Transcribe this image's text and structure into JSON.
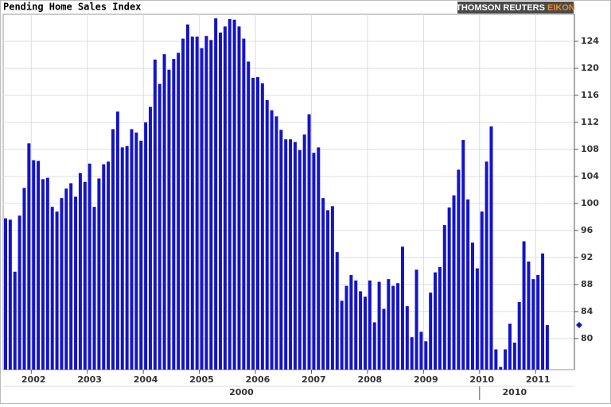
{
  "chart_data": {
    "type": "bar",
    "title": "Pending Home Sales Index",
    "brand": [
      "THOMSON REUTERS ",
      "EIKON"
    ],
    "brand_colors": [
      "#ffffff",
      "#f08a1c"
    ],
    "color": "#1414c8",
    "grid": true,
    "y_axis_side": "right",
    "ylim": [
      75.4,
      128
    ],
    "yticks": [
      80,
      84,
      88,
      92,
      96,
      100,
      104,
      108,
      112,
      116,
      120,
      124
    ],
    "categories": [
      null,
      null,
      null,
      null,
      null,
      null,
      "2002",
      null,
      null,
      null,
      null,
      null,
      null,
      null,
      null,
      null,
      null,
      null,
      "2003",
      null,
      null,
      null,
      null,
      null,
      null,
      null,
      null,
      null,
      null,
      null,
      "2004",
      null,
      null,
      null,
      null,
      null,
      null,
      null,
      null,
      null,
      null,
      null,
      "2005",
      null,
      null,
      null,
      null,
      null,
      null,
      null,
      null,
      null,
      null,
      null,
      "2006",
      null,
      null,
      null,
      null,
      null,
      null,
      null,
      null,
      null,
      null,
      null,
      "2007",
      null,
      null,
      null,
      null,
      null,
      null,
      null,
      null,
      null,
      null,
      null,
      "2008",
      null,
      null,
      null,
      null,
      null,
      null,
      null,
      null,
      null,
      null,
      null,
      "2009",
      null,
      null,
      null,
      null,
      null,
      null,
      null,
      null,
      null,
      null,
      null,
      "2010",
      null,
      null,
      null,
      null,
      null,
      null,
      null,
      null,
      null,
      null,
      null,
      "2011",
      null,
      null
    ],
    "values": [
      97.8,
      97.6,
      89.9,
      98.2,
      102.3,
      108.9,
      106.4,
      106.3,
      103.6,
      103.8,
      99.5,
      98.8,
      100.8,
      102.2,
      103.0,
      101.0,
      104.5,
      103.2,
      105.9,
      99.5,
      103.7,
      105.8,
      106.2,
      111.0,
      113.6,
      108.3,
      108.5,
      111.0,
      110.5,
      109.3,
      112.0,
      114.3,
      121.3,
      117.7,
      122.1,
      119.8,
      121.4,
      122.3,
      124.4,
      126.5,
      124.7,
      124.7,
      123.0,
      124.8,
      124.2,
      127.4,
      125.3,
      126.2,
      127.3,
      127.2,
      126.2,
      124.4,
      121.0,
      118.6,
      118.7,
      117.8,
      115.3,
      113.8,
      112.9,
      110.9,
      109.5,
      109.5,
      109.1,
      107.9,
      110.2,
      113.2,
      107.5,
      108.3,
      100.8,
      99.0,
      99.6,
      92.8,
      85.6,
      87.8,
      89.4,
      88.6,
      87.0,
      86.2,
      88.6,
      82.4,
      88.4,
      84.4,
      88.8,
      87.8,
      88.2,
      93.6,
      84.8,
      80.2,
      90.2,
      81.0,
      79.6,
      86.8,
      89.8,
      90.6,
      96.8,
      99.4,
      101.2,
      105.0,
      109.4,
      100.6,
      94.2,
      90.4,
      98.8,
      106.2,
      111.4,
      78.4,
      75.8,
      78.4,
      82.2,
      79.4,
      85.4,
      94.4,
      91.4,
      88.8,
      89.4,
      92.6,
      82.0
    ],
    "x_groups": [
      {
        "label": "2000",
        "start": 0
      },
      {
        "label": "2010",
        "start": 102
      }
    ],
    "last_value_marker": true
  }
}
